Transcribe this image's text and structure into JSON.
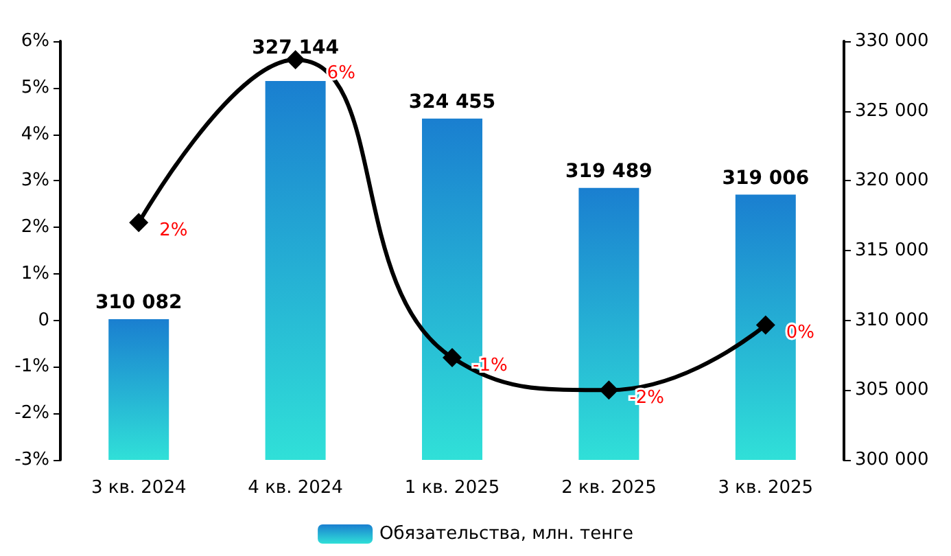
{
  "chart_data": {
    "type": "bar",
    "categories": [
      "3 кв. 2024",
      "4 кв. 2024",
      "1 кв. 2025",
      "2 кв. 2025",
      "3 кв. 2025"
    ],
    "series": [
      {
        "name": "Обязательства, млн. тенге",
        "axis": "y2",
        "color": "#1a7fd0",
        "values": [
          310082,
          327144,
          324455,
          319489,
          319006
        ],
        "value_labels": [
          "310 082",
          "327 144",
          "324 455",
          "319 489",
          "319 006"
        ]
      },
      {
        "type": "line",
        "color": "#000000",
        "marker": "diamond",
        "values": [
          2.1,
          5.6,
          -0.8,
          -1.5,
          -0.1
        ],
        "value_labels": [
          "2%",
          "6%",
          "-1%",
          "-2%",
          "0%"
        ]
      }
    ],
    "ylim": [
      -3,
      6
    ],
    "yticks": [
      {
        "value": -3,
        "label": "-3%"
      },
      {
        "value": -2,
        "label": "-2%"
      },
      {
        "value": -1,
        "label": "-1%"
      },
      {
        "value": 0,
        "label": "0"
      },
      {
        "value": 1,
        "label": "1%"
      },
      {
        "value": 2,
        "label": "2%"
      },
      {
        "value": 3,
        "label": "3%"
      },
      {
        "value": 4,
        "label": "4%"
      },
      {
        "value": 5,
        "label": "5%"
      },
      {
        "value": 6,
        "label": "6%"
      }
    ],
    "y2lim": [
      300000,
      330000
    ],
    "y2ticks": [
      {
        "value": 300000,
        "label": "300 000"
      },
      {
        "value": 305000,
        "label": "305 000"
      },
      {
        "value": 310000,
        "label": "310 000"
      },
      {
        "value": 315000,
        "label": "315 000"
      },
      {
        "value": 320000,
        "label": "320 000"
      },
      {
        "value": 325000,
        "label": "325 000"
      },
      {
        "value": 330000,
        "label": "330 000"
      }
    ],
    "grid": false,
    "legend": "bottom"
  }
}
